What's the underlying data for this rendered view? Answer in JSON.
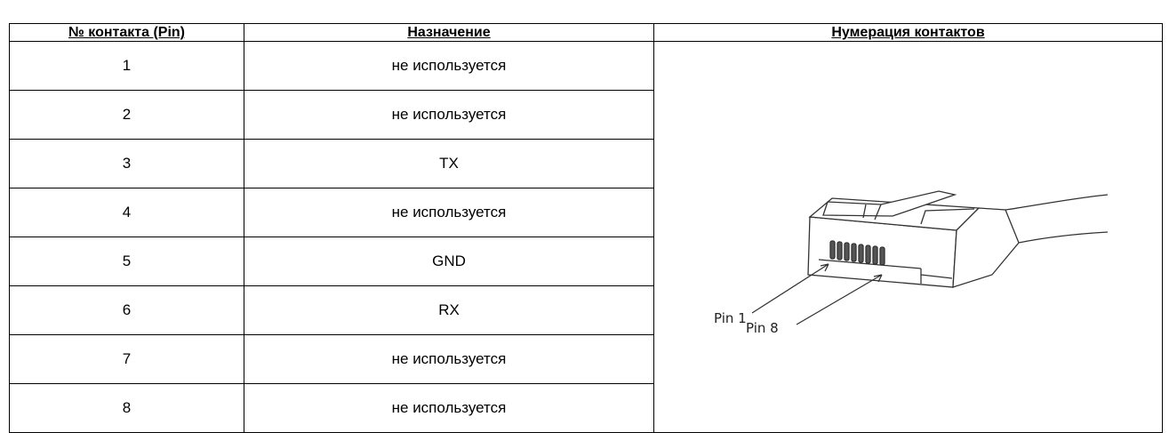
{
  "table": {
    "header": [
      "№ контакта (Pin)",
      "Назначение",
      "Нумерация контактов"
    ],
    "rows": [
      [
        "1",
        "не используется"
      ],
      [
        "2",
        "не используется"
      ],
      [
        "3",
        "TX"
      ],
      [
        "4",
        "не используется"
      ],
      [
        "5",
        "GND"
      ],
      [
        "6",
        "RX"
      ],
      [
        "7",
        "не используется"
      ],
      [
        "8",
        "не используется"
      ]
    ]
  },
  "diagram": {
    "pin_first_label": "Pin 1",
    "pin_last_label": "Pin 8"
  }
}
